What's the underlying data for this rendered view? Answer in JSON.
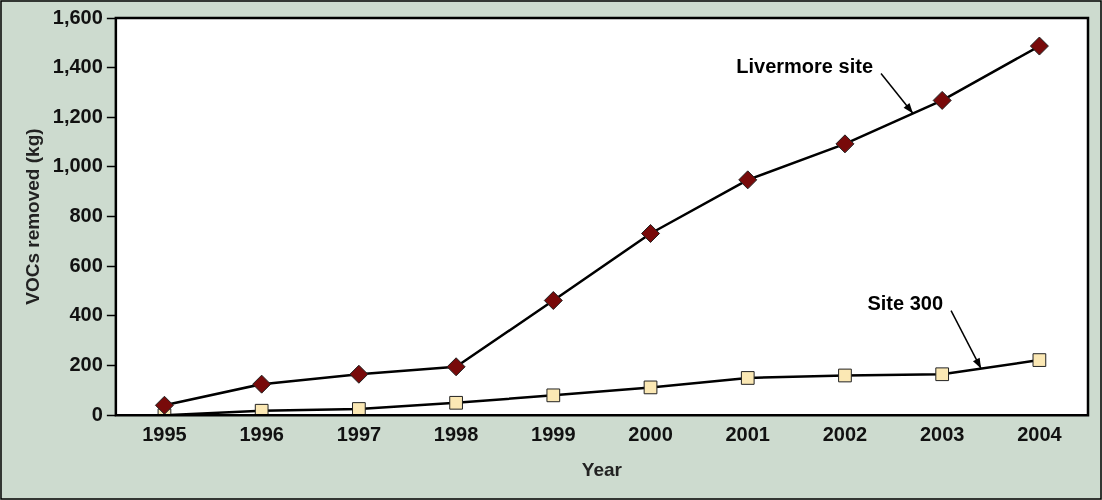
{
  "chart_data": {
    "type": "line",
    "xlabel": "Year",
    "ylabel": "VOCs removed (kg)",
    "categories": [
      "1995",
      "1996",
      "1997",
      "1998",
      "1999",
      "2000",
      "2001",
      "2002",
      "2003",
      "2004"
    ],
    "series": [
      {
        "name": "Livermore site",
        "color": "#780a0a",
        "marker": "diamond",
        "values": [
          40,
          125,
          165,
          195,
          462,
          732,
          948,
          1093,
          1268,
          1487
        ]
      },
      {
        "name": "Site 300",
        "color": "#fbe8b4",
        "marker": "square",
        "values": [
          0,
          18,
          25,
          50,
          80,
          112,
          150,
          160,
          165,
          222
        ]
      }
    ],
    "ylim": [
      0,
      1600
    ],
    "yticks": [
      0,
      200,
      400,
      600,
      800,
      {
        "value": 1000,
        "label": "1,000"
      },
      {
        "value": 1200,
        "label": "1,200"
      },
      {
        "value": 1400,
        "label": "1,400"
      },
      {
        "value": 1600,
        "label": "1,600"
      }
    ],
    "grid": false,
    "legend": false,
    "line_style": "solid"
  }
}
